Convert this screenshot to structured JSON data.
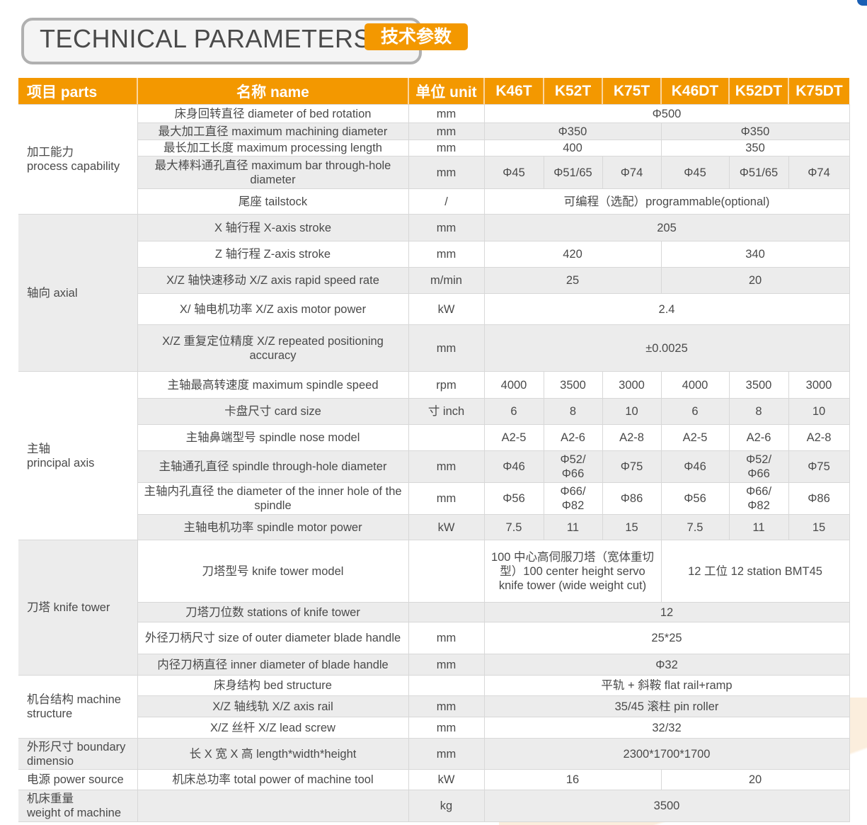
{
  "title": {
    "en": "TECHNICAL PARAMETERS",
    "cn": "技术参数"
  },
  "colors": {
    "accent": "#f39800",
    "row_grey": "#ececec"
  },
  "header": [
    "项目 parts",
    "名称 name",
    "单位 unit",
    "K46T",
    "K52T",
    "K75T",
    "K46DT",
    "K52DT",
    "K75DT"
  ],
  "groups": [
    {
      "part": "加工能力\nprocess capability",
      "rows": [
        {
          "name": "床身回转直径 diameter of bed rotation",
          "unit": "mm",
          "values": [
            [
              "Φ500",
              6
            ]
          ]
        },
        {
          "name": "最大加工直径 maximum machining diameter",
          "unit": "mm",
          "values": [
            [
              "Φ350",
              3
            ],
            [
              "Φ350",
              3
            ]
          ]
        },
        {
          "name": "最长加工长度 maximum processing length",
          "unit": "mm",
          "values": [
            [
              "400",
              3
            ],
            [
              "350",
              3
            ]
          ]
        },
        {
          "name": "最大棒料通孔直径 maximum bar through-hole diameter",
          "unit": "mm",
          "values": [
            [
              "Φ45",
              1
            ],
            [
              "Φ51/65",
              1
            ],
            [
              "Φ74",
              1
            ],
            [
              "Φ45",
              1
            ],
            [
              "Φ51/65",
              1
            ],
            [
              "Φ74",
              1
            ]
          ]
        },
        {
          "name": "尾座 tailstock",
          "unit": "/",
          "values": [
            [
              "可编程（选配）programmable(optional)",
              6
            ]
          ]
        }
      ]
    },
    {
      "part": "轴向 axial",
      "rows": [
        {
          "name": "X 轴行程 X-axis stroke",
          "unit": "mm",
          "values": [
            [
              "205",
              6
            ]
          ]
        },
        {
          "name": "Z 轴行程 Z-axis stroke",
          "unit": "mm",
          "values": [
            [
              "420",
              3
            ],
            [
              "340",
              3
            ]
          ]
        },
        {
          "name": "X/Z 轴快速移动 X/Z axis rapid speed rate",
          "unit": "m/min",
          "values": [
            [
              "25",
              3
            ],
            [
              "20",
              3
            ]
          ]
        },
        {
          "name": "X/ 轴电机功率 X/Z axis motor power",
          "unit": "kW",
          "values": [
            [
              "2.4",
              6
            ]
          ]
        },
        {
          "name": "X/Z 重复定位精度 X/Z repeated positioning accuracy",
          "unit": "mm",
          "values": [
            [
              "±0.0025",
              6
            ]
          ]
        }
      ]
    },
    {
      "part": "主轴\nprincipal axis",
      "rows": [
        {
          "name": "主轴最高转速度 maximum spindle speed",
          "unit": "rpm",
          "values": [
            [
              "4000",
              1
            ],
            [
              "3500",
              1
            ],
            [
              "3000",
              1
            ],
            [
              "4000",
              1
            ],
            [
              "3500",
              1
            ],
            [
              "3000",
              1
            ]
          ]
        },
        {
          "name": "卡盘尺寸 card size",
          "unit": "寸 inch",
          "values": [
            [
              "6",
              1
            ],
            [
              "8",
              1
            ],
            [
              "10",
              1
            ],
            [
              "6",
              1
            ],
            [
              "8",
              1
            ],
            [
              "10",
              1
            ]
          ]
        },
        {
          "name": "主轴鼻端型号 spindle nose model",
          "unit": "",
          "values": [
            [
              "A2-5",
              1
            ],
            [
              "A2-6",
              1
            ],
            [
              "A2-8",
              1
            ],
            [
              "A2-5",
              1
            ],
            [
              "A2-6",
              1
            ],
            [
              "A2-8",
              1
            ]
          ]
        },
        {
          "name": "主轴通孔直径 spindle through-hole diameter",
          "unit": "mm",
          "values": [
            [
              "Φ46",
              1
            ],
            [
              "Φ52/\nΦ66",
              1
            ],
            [
              "Φ75",
              1
            ],
            [
              "Φ46",
              1
            ],
            [
              "Φ52/\nΦ66",
              1
            ],
            [
              "Φ75",
              1
            ]
          ]
        },
        {
          "name": "主轴内孔直径 the diameter of the inner hole of the spindle",
          "unit": "mm",
          "values": [
            [
              "Φ56",
              1
            ],
            [
              "Φ66/\nΦ82",
              1
            ],
            [
              "Φ86",
              1
            ],
            [
              "Φ56",
              1
            ],
            [
              "Φ66/\nΦ82",
              1
            ],
            [
              "Φ86",
              1
            ]
          ]
        },
        {
          "name": "主轴电机功率 spindle motor power",
          "unit": "kW",
          "values": [
            [
              "7.5",
              1
            ],
            [
              "11",
              1
            ],
            [
              "15",
              1
            ],
            [
              "7.5",
              1
            ],
            [
              "11",
              1
            ],
            [
              "15",
              1
            ]
          ]
        }
      ]
    },
    {
      "part": "刀塔 knife tower",
      "rows": [
        {
          "name": "刀塔型号 knife tower model",
          "unit": "",
          "values": [
            [
              "100 中心高伺服刀塔（宽体重切型）100 center height servo knife tower (wide weight cut)",
              3
            ],
            [
              "12 工位 12 station BMT45",
              3
            ]
          ]
        },
        {
          "name": "刀塔刀位数 stations of knife tower",
          "unit": "",
          "values": [
            [
              "12",
              6
            ]
          ]
        },
        {
          "name": "外径刀柄尺寸 size of outer diameter blade handle",
          "unit": "mm",
          "values": [
            [
              "25*25",
              6
            ]
          ]
        },
        {
          "name": "内径刀柄直径 inner diameter of blade handle",
          "unit": "mm",
          "values": [
            [
              "Φ32",
              6
            ]
          ]
        }
      ]
    },
    {
      "part": "机台结构 machine structure",
      "rows": [
        {
          "name": "床身结构 bed structure",
          "unit": "",
          "values": [
            [
              "平轨 + 斜鞍 flat rail+ramp",
              6
            ]
          ]
        },
        {
          "name": "X/Z 轴线轨 X/Z axis rail",
          "unit": "mm",
          "values": [
            [
              "35/45 滚柱 pin roller",
              6
            ]
          ]
        },
        {
          "name": "X/Z 丝杆 X/Z lead screw",
          "unit": "mm",
          "values": [
            [
              "32/32",
              6
            ]
          ]
        }
      ]
    },
    {
      "part": "外形尺寸 boundary dimensio",
      "rows": [
        {
          "name": "长 X 宽 X 高 length*width*height",
          "unit": "mm",
          "values": [
            [
              "2300*1700*1700",
              6
            ]
          ]
        }
      ]
    },
    {
      "part": "电源 power source",
      "rows": [
        {
          "name": "机床总功率 total power of machine tool",
          "unit": "kW",
          "values": [
            [
              "16",
              3
            ],
            [
              "20",
              3
            ]
          ]
        }
      ]
    },
    {
      "part": "机床重量\nweight of machine",
      "rows": [
        {
          "name": "",
          "unit": "kg",
          "values": [
            [
              "3500",
              6
            ]
          ]
        }
      ]
    }
  ]
}
